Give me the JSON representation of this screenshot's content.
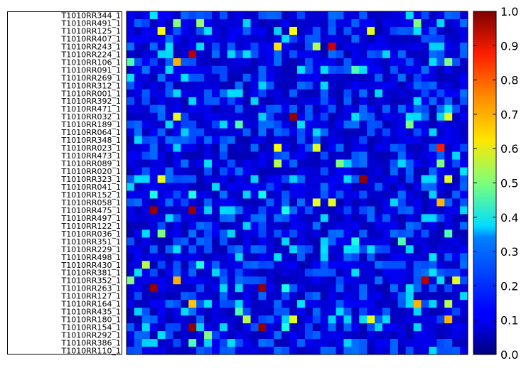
{
  "chart_data": {
    "type": "heatmap",
    "colormap": "jet",
    "colorbar": {
      "ticks": [
        "0.0",
        "0.1",
        "0.2",
        "0.3",
        "0.4",
        "0.5",
        "0.6",
        "0.7",
        "0.8",
        "0.9",
        "1.0"
      ],
      "range": [
        0.0,
        1.0
      ]
    },
    "row_labels": [
      "T1010RR344_1",
      "T1010RR491_1",
      "T1010RR125_1",
      "T1010RR407_1",
      "T1010RR243_1",
      "T1010RR224_1",
      "T1010RR106_1",
      "T1010RR091_1",
      "T1010RR269_1",
      "T1010RR312_1",
      "T1010RR001_1",
      "T1010RR392_1",
      "T1010RR471_1",
      "T1010RR032_1",
      "T1010RR189_1",
      "T1010RR064_1",
      "T1010RR348_1",
      "T1010RR023_1",
      "T1010RR473_1",
      "T1010RR089_1",
      "T1010RR020_1",
      "T1010RR323_1",
      "T1010RR041_1",
      "T1010RR152_1",
      "T1010RR058_1",
      "T1010RR475_1",
      "T1010RR497_1",
      "T1010RR122_1",
      "T1010RR036_1",
      "T1010RR351_1",
      "T1010RR229_1",
      "T1010RR498_1",
      "T1010RR430_1",
      "T1010RR381_1",
      "T1010RR352_1",
      "T1010RR263_1",
      "T1010RR127_1",
      "T1010RR164_1",
      "T1010RR435_1",
      "T1010RR180_1",
      "T1010RR154_1",
      "T1010RR292_1",
      "T1010RR386_1",
      "T1010RR110_1"
    ],
    "n_rows": 44,
    "n_cols": 44,
    "background_value": 0.05,
    "highlights": [
      {
        "row": 2,
        "col": 4,
        "value": 0.62
      },
      {
        "row": 2,
        "col": 21,
        "value": 0.62
      },
      {
        "row": 2,
        "col": 31,
        "value": 0.6
      },
      {
        "row": 1,
        "col": 6,
        "value": 0.5
      },
      {
        "row": 1,
        "col": 9,
        "value": 0.52
      },
      {
        "row": 1,
        "col": 37,
        "value": 0.5
      },
      {
        "row": 4,
        "col": 19,
        "value": 0.65
      },
      {
        "row": 4,
        "col": 24,
        "value": 0.55
      },
      {
        "row": 4,
        "col": 26,
        "value": 0.92
      },
      {
        "row": 5,
        "col": 8,
        "value": 0.95
      },
      {
        "row": 6,
        "col": 6,
        "value": 0.7
      },
      {
        "row": 6,
        "col": 0,
        "value": 0.45
      },
      {
        "row": 6,
        "col": 41,
        "value": 0.5
      },
      {
        "row": 7,
        "col": 29,
        "value": 0.45
      },
      {
        "row": 13,
        "col": 21,
        "value": 0.98
      },
      {
        "row": 13,
        "col": 6,
        "value": 0.6
      },
      {
        "row": 13,
        "col": 41,
        "value": 0.6
      },
      {
        "row": 14,
        "col": 36,
        "value": 0.5
      },
      {
        "row": 14,
        "col": 14,
        "value": 0.45
      },
      {
        "row": 17,
        "col": 19,
        "value": 0.62
      },
      {
        "row": 17,
        "col": 24,
        "value": 0.6
      },
      {
        "row": 17,
        "col": 40,
        "value": 0.85
      },
      {
        "row": 19,
        "col": 19,
        "value": 0.55
      },
      {
        "row": 19,
        "col": 27,
        "value": 0.5
      },
      {
        "row": 19,
        "col": 40,
        "value": 0.5
      },
      {
        "row": 21,
        "col": 30,
        "value": 0.98
      },
      {
        "row": 21,
        "col": 4,
        "value": 0.6
      },
      {
        "row": 21,
        "col": 41,
        "value": 0.6
      },
      {
        "row": 23,
        "col": 3,
        "value": 0.4
      },
      {
        "row": 23,
        "col": 8,
        "value": 0.4
      },
      {
        "row": 23,
        "col": 17,
        "value": 0.38
      },
      {
        "row": 24,
        "col": 24,
        "value": 0.6
      },
      {
        "row": 24,
        "col": 26,
        "value": 0.6
      },
      {
        "row": 24,
        "col": 40,
        "value": 0.7
      },
      {
        "row": 25,
        "col": 3,
        "value": 0.98
      },
      {
        "row": 25,
        "col": 8,
        "value": 0.98
      },
      {
        "row": 25,
        "col": 20,
        "value": 0.4
      },
      {
        "row": 28,
        "col": 4,
        "value": 0.5
      },
      {
        "row": 28,
        "col": 41,
        "value": 0.45
      },
      {
        "row": 29,
        "col": 29,
        "value": 0.4
      },
      {
        "row": 29,
        "col": 35,
        "value": 0.45
      },
      {
        "row": 32,
        "col": 2,
        "value": 0.55
      },
      {
        "row": 32,
        "col": 9,
        "value": 0.4
      },
      {
        "row": 34,
        "col": 6,
        "value": 0.7
      },
      {
        "row": 34,
        "col": 38,
        "value": 0.95
      },
      {
        "row": 34,
        "col": 42,
        "value": 0.6
      },
      {
        "row": 34,
        "col": 0,
        "value": 0.5
      },
      {
        "row": 35,
        "col": 3,
        "value": 0.98
      },
      {
        "row": 35,
        "col": 17,
        "value": 0.98
      },
      {
        "row": 35,
        "col": 20,
        "value": 0.4
      },
      {
        "row": 37,
        "col": 8,
        "value": 0.68
      },
      {
        "row": 37,
        "col": 37,
        "value": 0.7
      },
      {
        "row": 37,
        "col": 41,
        "value": 0.55
      },
      {
        "row": 38,
        "col": 14,
        "value": 0.45
      },
      {
        "row": 39,
        "col": 15,
        "value": 0.55
      },
      {
        "row": 39,
        "col": 21,
        "value": 0.6
      },
      {
        "row": 39,
        "col": 31,
        "value": 0.6
      },
      {
        "row": 39,
        "col": 41,
        "value": 0.7
      },
      {
        "row": 40,
        "col": 8,
        "value": 0.98
      },
      {
        "row": 40,
        "col": 17,
        "value": 0.98
      },
      {
        "row": 40,
        "col": 20,
        "value": 0.4
      },
      {
        "row": 41,
        "col": 10,
        "value": 0.5
      },
      {
        "row": 42,
        "col": 8,
        "value": 0.45
      }
    ]
  }
}
